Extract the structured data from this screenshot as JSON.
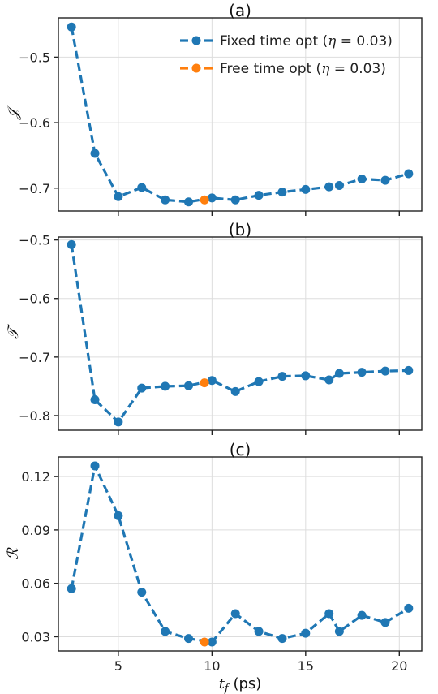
{
  "chart_data": [
    {
      "type": "line",
      "title": "(a)",
      "ylabel": "𝒥",
      "xlabel": "",
      "xlim": [
        1.8,
        21.2
      ],
      "ylim": [
        -0.735,
        -0.44
      ],
      "xticks": [
        5,
        10,
        15,
        20
      ],
      "yticks": [
        -0.5,
        -0.6,
        -0.7
      ],
      "ytick_labels": [
        "−0.5",
        "−0.6",
        "−0.7"
      ],
      "grid": true,
      "legend": "top-right",
      "series": [
        {
          "name": "Fixed time opt (η = 0.03)",
          "color": "#1f77b4",
          "x": [
            2.5,
            3.75,
            5.0,
            6.25,
            7.5,
            8.75,
            10.0,
            11.25,
            12.5,
            13.75,
            15.0,
            16.25,
            16.8,
            18.0,
            19.25,
            20.5
          ],
          "y": [
            -0.454,
            -0.647,
            -0.713,
            -0.699,
            -0.718,
            -0.721,
            -0.715,
            -0.718,
            -0.711,
            -0.706,
            -0.702,
            -0.698,
            -0.696,
            -0.686,
            -0.688,
            -0.678
          ]
        },
        {
          "name": "Free time opt (η = 0.03)",
          "color": "#ff7f0e",
          "x": [
            9.6
          ],
          "y": [
            -0.718
          ]
        }
      ]
    },
    {
      "type": "line",
      "title": "(b)",
      "ylabel": "𝒯",
      "xlabel": "",
      "xlim": [
        1.8,
        21.2
      ],
      "ylim": [
        -0.825,
        -0.495
      ],
      "xticks": [
        5,
        10,
        15,
        20
      ],
      "yticks": [
        -0.5,
        -0.6,
        -0.7,
        -0.8
      ],
      "ytick_labels": [
        "−0.5",
        "−0.6",
        "−0.7",
        "−0.8"
      ],
      "grid": true,
      "series": [
        {
          "name": "Fixed time opt (η = 0.03)",
          "color": "#1f77b4",
          "x": [
            2.5,
            3.75,
            5.0,
            6.25,
            7.5,
            8.75,
            10.0,
            11.25,
            12.5,
            13.75,
            15.0,
            16.25,
            16.8,
            18.0,
            19.25,
            20.5
          ],
          "y": [
            -0.508,
            -0.773,
            -0.811,
            -0.753,
            -0.75,
            -0.749,
            -0.74,
            -0.759,
            -0.742,
            -0.733,
            -0.732,
            -0.739,
            -0.728,
            -0.726,
            -0.724,
            -0.723
          ]
        },
        {
          "name": "Free time opt (η = 0.03)",
          "color": "#ff7f0e",
          "x": [
            9.6
          ],
          "y": [
            -0.744
          ]
        }
      ]
    },
    {
      "type": "line",
      "title": "(c)",
      "ylabel": "ℛ",
      "xlabel": "t_f (ps)",
      "xlim": [
        1.8,
        21.2
      ],
      "ylim": [
        0.022,
        0.131
      ],
      "xticks": [
        5,
        10,
        15,
        20
      ],
      "xtick_labels": [
        "5",
        "10",
        "15",
        "20"
      ],
      "yticks": [
        0.03,
        0.06,
        0.09,
        0.12
      ],
      "ytick_labels": [
        "0.03",
        "0.06",
        "0.09",
        "0.12"
      ],
      "grid": true,
      "series": [
        {
          "name": "Fixed time opt (η = 0.03)",
          "color": "#1f77b4",
          "x": [
            2.5,
            3.75,
            5.0,
            6.25,
            7.5,
            8.75,
            10.0,
            11.25,
            12.5,
            13.75,
            15.0,
            16.25,
            16.8,
            18.0,
            19.25,
            20.5
          ],
          "y": [
            0.057,
            0.126,
            0.098,
            0.055,
            0.033,
            0.029,
            0.027,
            0.043,
            0.033,
            0.029,
            0.032,
            0.043,
            0.033,
            0.042,
            0.038,
            0.046
          ]
        },
        {
          "name": "Free time opt (η = 0.03)",
          "color": "#ff7f0e",
          "x": [
            9.6
          ],
          "y": [
            0.027
          ]
        }
      ]
    }
  ]
}
